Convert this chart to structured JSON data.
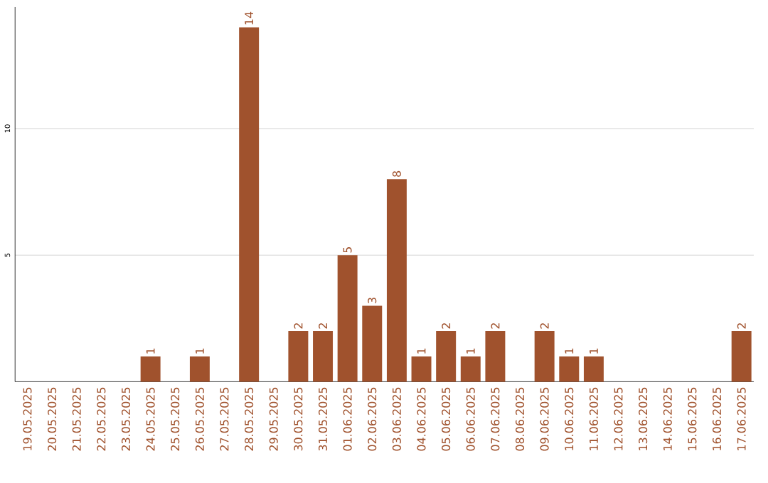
{
  "chart_data": {
    "type": "bar",
    "color": "#a0522d",
    "categories": [
      "19.05.2025",
      "20.05.2025",
      "21.05.2025",
      "22.05.2025",
      "23.05.2025",
      "24.05.2025",
      "25.05.2025",
      "26.05.2025",
      "27.05.2025",
      "28.05.2025",
      "29.05.2025",
      "30.05.2025",
      "31.05.2025",
      "01.06.2025",
      "02.06.2025",
      "03.06.2025",
      "04.06.2025",
      "05.06.2025",
      "06.06.2025",
      "07.06.2025",
      "08.06.2025",
      "09.06.2025",
      "10.06.2025",
      "11.06.2025",
      "12.06.2025",
      "13.06.2025",
      "14.06.2025",
      "15.06.2025",
      "16.06.2025",
      "17.06.2025"
    ],
    "values": [
      0,
      0,
      0,
      0,
      0,
      1,
      0,
      1,
      0,
      14,
      0,
      2,
      2,
      5,
      3,
      8,
      1,
      2,
      1,
      2,
      0,
      2,
      1,
      1,
      0,
      0,
      0,
      0,
      0,
      2
    ],
    "value_labels": [
      null,
      null,
      null,
      null,
      null,
      "1",
      null,
      "1",
      null,
      "14",
      null,
      "2",
      "2",
      "5",
      "3",
      "8",
      "1",
      "2",
      "1",
      "2",
      null,
      "2",
      "1",
      "1",
      null,
      null,
      null,
      null,
      null,
      "2"
    ],
    "ylim": [
      0,
      14.8
    ],
    "yticks": [
      5,
      10
    ],
    "grid": "y"
  }
}
